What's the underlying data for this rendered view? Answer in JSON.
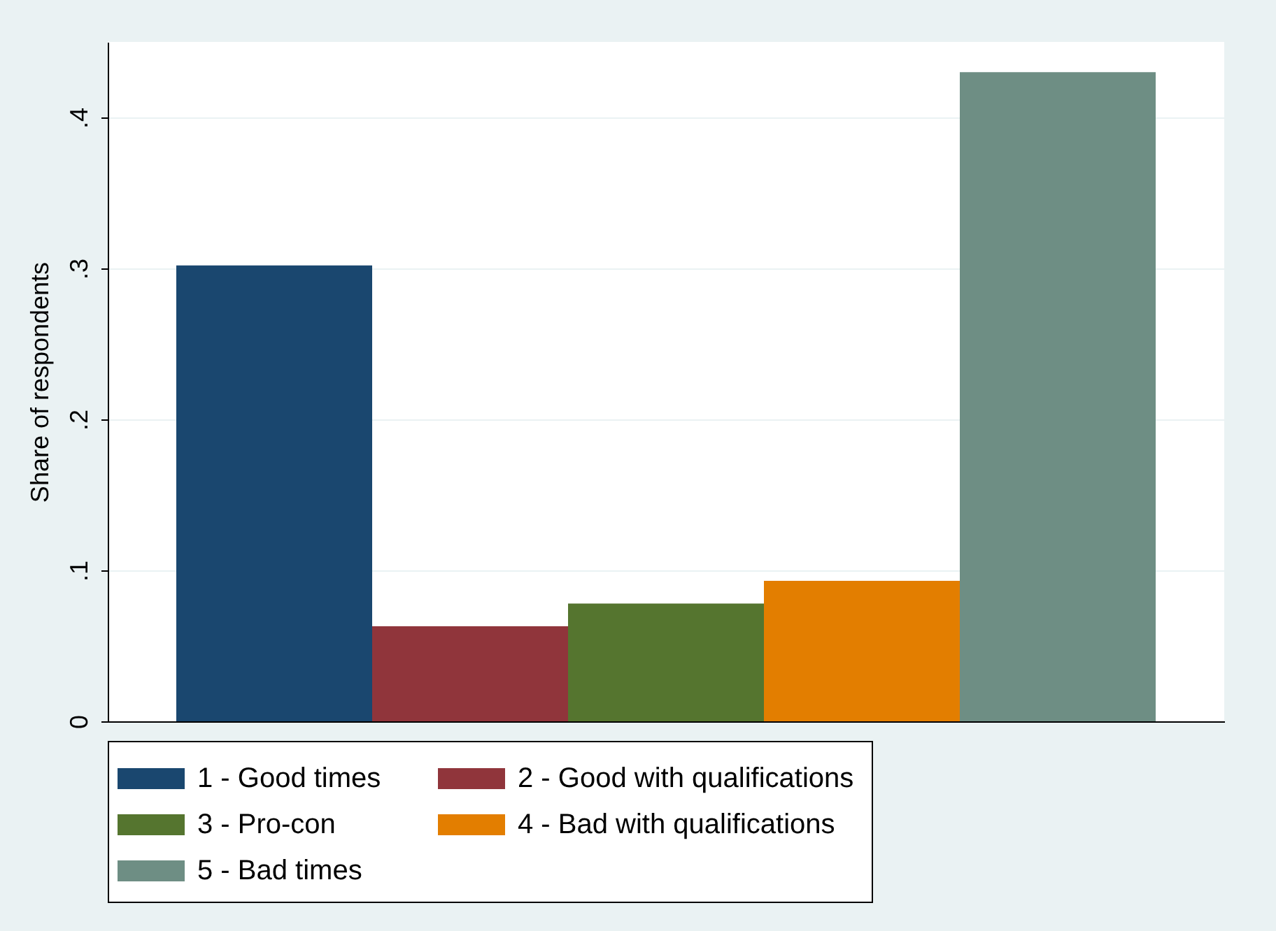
{
  "chart_data": {
    "type": "bar",
    "ylabel": "Share of respondents",
    "categories": [
      null
    ],
    "series": [
      {
        "name": "1 - Good times",
        "color": "#1a476f",
        "values": [
          0.302
        ]
      },
      {
        "name": "2 - Good with qualifications",
        "color": "#90353b",
        "values": [
          0.063
        ]
      },
      {
        "name": "3 - Pro-con",
        "color": "#55752f",
        "values": [
          0.078
        ]
      },
      {
        "name": "4 - Bad with qualifications",
        "color": "#e37e00",
        "values": [
          0.093
        ]
      },
      {
        "name": "5 - Bad times",
        "color": "#6e8e84",
        "values": [
          0.43
        ]
      }
    ],
    "ylim": [
      0,
      0.45
    ],
    "yticks": [
      0,
      {
        "value": 0.1,
        "label": ".1"
      },
      {
        "value": 0.2,
        "label": ".2"
      },
      {
        "value": 0.3,
        "label": ".3"
      },
      {
        "value": 0.4,
        "label": ".4"
      }
    ],
    "grid": "y",
    "legend": "bottom",
    "tick_labels": "y"
  }
}
